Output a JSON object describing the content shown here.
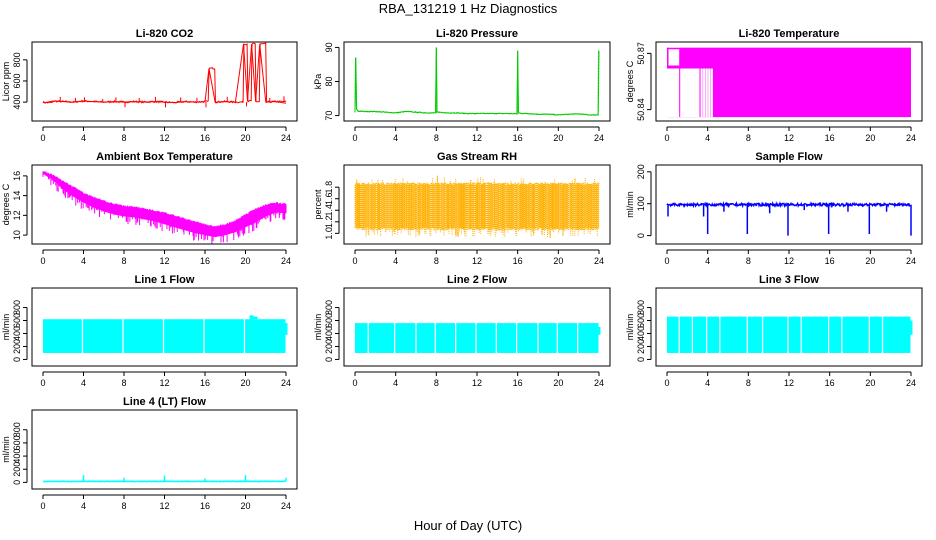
{
  "title": "RBA_131219  1 Hz Diagnostics",
  "xlabel": "Hour of Day (UTC)",
  "chart_data": [
    {
      "type": "line",
      "title": "Li-820 CO2",
      "ylabel": "Licor ppm",
      "color": "#ff0000",
      "xlim": [
        0,
        24
      ],
      "ylim": [
        240,
        950
      ],
      "yticks": [
        400,
        600,
        800
      ],
      "xticks": [
        0,
        4,
        8,
        12,
        16,
        20,
        24
      ],
      "series": [
        {
          "x": [
            0,
            0.2,
            1,
            2,
            3,
            4,
            5,
            6,
            7,
            8,
            9,
            10,
            11,
            12,
            13,
            14,
            15,
            16,
            16.4,
            17,
            18,
            19,
            19.8,
            20.2,
            20.6,
            21,
            21.4,
            22,
            23,
            24
          ],
          "y": [
            400,
            395,
            410,
            405,
            400,
            410,
            405,
            400,
            405,
            400,
            405,
            400,
            405,
            400,
            395,
            405,
            400,
            405,
            720,
            400,
            405,
            400,
            950,
            410,
            950,
            405,
            950,
            400,
            405,
            390
          ]
        }
      ],
      "spikes": [
        {
          "x": 1.7,
          "y": 450
        },
        {
          "x": 3.2,
          "y": 440
        },
        {
          "x": 4.1,
          "y": 445
        },
        {
          "x": 5.9,
          "y": 430
        },
        {
          "x": 7.2,
          "y": 445
        },
        {
          "x": 8.1,
          "y": 350
        },
        {
          "x": 9.5,
          "y": 440
        },
        {
          "x": 11.1,
          "y": 450
        },
        {
          "x": 12.1,
          "y": 350
        },
        {
          "x": 13.6,
          "y": 445
        },
        {
          "x": 15.2,
          "y": 440
        },
        {
          "x": 16.1,
          "y": 350
        },
        {
          "x": 18.2,
          "y": 450
        },
        {
          "x": 20.1,
          "y": 360
        },
        {
          "x": 22.4,
          "y": 440
        },
        {
          "x": 23.8,
          "y": 455
        }
      ]
    },
    {
      "type": "line",
      "title": "Li-820 Pressure",
      "ylabel": "kPa",
      "color": "#00cc00",
      "xlim": [
        0,
        24
      ],
      "ylim": [
        69,
        91
      ],
      "yticks": [
        70,
        80,
        90
      ],
      "xticks": [
        0,
        4,
        8,
        12,
        16,
        20,
        24
      ],
      "series": [
        {
          "x": [
            0,
            0.05,
            0.15,
            0.3,
            1,
            2,
            3,
            4,
            5,
            6,
            7,
            7.95,
            8.0,
            8.05,
            8.5,
            9,
            10,
            11,
            12,
            13,
            14,
            15,
            15.95,
            16.0,
            16.05,
            16.5,
            17,
            18,
            19,
            20,
            21,
            22,
            23,
            23.9,
            23.95,
            24
          ],
          "y": [
            71,
            87,
            72,
            71.3,
            71.2,
            71.2,
            71,
            70.8,
            71.2,
            71,
            70.8,
            70.8,
            90,
            71,
            70.9,
            70.8,
            70.8,
            70.6,
            70.6,
            70.6,
            70.6,
            70.6,
            70.5,
            89,
            70.8,
            70.6,
            70.6,
            70.4,
            70.4,
            70.2,
            70.4,
            70.5,
            70.2,
            70.2,
            89,
            89
          ]
        }
      ],
      "spikes": []
    },
    {
      "type": "area",
      "title": "Li-820 Temperature",
      "ylabel": "degrees C",
      "color": "#ff00ff",
      "xlim": [
        0,
        24
      ],
      "ylim": [
        50.835,
        50.875
      ],
      "yticks": [
        50.84,
        50.87
      ],
      "xticks": [
        0,
        4,
        8,
        12,
        16,
        20,
        24
      ],
      "band_low": 50.836,
      "band_high": 50.873,
      "step_top_before_x": 1.2,
      "step_top_value": 50.863,
      "gaps": [
        1.2,
        3.2,
        3.45,
        3.7,
        3.95,
        4.2,
        4.6
      ]
    },
    {
      "type": "line",
      "title": "Ambient Box Temperature",
      "ylabel": "degrees C",
      "color": "#ff00ff",
      "xlim": [
        0,
        24
      ],
      "ylim": [
        9.3,
        16.9
      ],
      "yticks": [
        10,
        12,
        14,
        16
      ],
      "xticks": [
        0,
        4,
        8,
        12,
        16,
        20,
        24
      ],
      "series": [
        {
          "name": "upper",
          "x": [
            0,
            1,
            2,
            3,
            4,
            5,
            6,
            7,
            8,
            9,
            10,
            11,
            12,
            13,
            14,
            15,
            16,
            17,
            18,
            19,
            20,
            21,
            22,
            23,
            24
          ],
          "y": [
            16.4,
            16.0,
            15.4,
            14.8,
            14.2,
            13.8,
            13.4,
            13.1,
            12.9,
            12.8,
            12.6,
            12.4,
            12.2,
            11.9,
            11.6,
            11.3,
            11.0,
            10.8,
            11.0,
            11.4,
            12.0,
            12.6,
            13.0,
            13.2,
            13.1
          ]
        },
        {
          "name": "lower",
          "x": [
            0,
            1,
            2,
            3,
            4,
            5,
            6,
            7,
            8,
            9,
            10,
            11,
            12,
            13,
            14,
            15,
            16,
            17,
            18,
            19,
            20,
            21,
            22,
            23,
            24
          ],
          "y": [
            16.2,
            15.6,
            14.6,
            13.9,
            13.3,
            12.8,
            12.4,
            12.1,
            11.9,
            11.8,
            11.6,
            11.4,
            11.1,
            10.8,
            10.5,
            10.2,
            10.0,
            9.8,
            10.0,
            10.3,
            10.8,
            11.3,
            11.9,
            12.3,
            12.2
          ]
        }
      ]
    },
    {
      "type": "area",
      "title": "Gas Stream RH",
      "ylabel": "percent",
      "color": "#ffb000",
      "xlim": [
        0,
        24
      ],
      "ylim": [
        0.85,
        2.15
      ],
      "yticks": [
        1.0,
        1.2,
        1.4,
        1.6,
        1.8
      ],
      "xticks": [
        0,
        4,
        8,
        12,
        16,
        20,
        24
      ],
      "band_low": 1.05,
      "band_high": 1.88,
      "outliers_high": 2.0,
      "outliers_low": 0.92
    },
    {
      "type": "line",
      "title": "Sample Flow",
      "ylabel": "ml/min",
      "color": "#0000ff",
      "xlim": [
        0,
        24
      ],
      "ylim": [
        -20,
        215
      ],
      "yticks": [
        0,
        100,
        200
      ],
      "xticks": [
        0,
        4,
        8,
        12,
        16,
        20,
        24
      ],
      "baseline": 97,
      "dips": [
        {
          "x": 0.1,
          "y": 60
        },
        {
          "x": 3.6,
          "y": 60
        },
        {
          "x": 4.0,
          "y": 5
        },
        {
          "x": 5.6,
          "y": 75
        },
        {
          "x": 7.9,
          "y": 5
        },
        {
          "x": 10.1,
          "y": 70
        },
        {
          "x": 11.9,
          "y": 0
        },
        {
          "x": 13.5,
          "y": 80
        },
        {
          "x": 15.9,
          "y": 5
        },
        {
          "x": 17.8,
          "y": 75
        },
        {
          "x": 19.9,
          "y": 5
        },
        {
          "x": 21.6,
          "y": 75
        },
        {
          "x": 24.0,
          "y": 0
        }
      ]
    },
    {
      "type": "area",
      "title": "Line 1 Flow",
      "ylabel": "ml/min",
      "color": "#00ffff",
      "xlim": [
        0,
        24
      ],
      "ylim": [
        -70,
        1070
      ],
      "yticks": [
        0,
        200,
        400,
        600,
        800
      ],
      "xticks": [
        0,
        4,
        8,
        12,
        16,
        20,
        24
      ],
      "band_low": 100,
      "band_high": 620,
      "gaps": [
        3.9,
        7.9,
        11.9,
        15.9,
        19.9
      ],
      "bumps": [
        {
          "x": 20.6,
          "y": 680
        },
        {
          "x": 21.0,
          "y": 660
        }
      ]
    },
    {
      "type": "area",
      "title": "Line 2 Flow",
      "ylabel": "ml/min",
      "color": "#00ffff",
      "xlim": [
        0,
        24
      ],
      "ylim": [
        -70,
        1070
      ],
      "yticks": [
        0,
        200,
        400,
        600,
        800
      ],
      "xticks": [
        0,
        4,
        8,
        12,
        16,
        20,
        24
      ],
      "band_low": 100,
      "band_high": 560,
      "gaps": [
        1.3,
        3.9,
        6.0,
        7.9,
        9.9,
        11.9,
        13.9,
        15.9,
        18.0,
        19.9,
        21.9
      ],
      "bumps": []
    },
    {
      "type": "area",
      "title": "Line 3 Flow",
      "ylabel": "ml/min",
      "color": "#00ffff",
      "xlim": [
        0,
        24
      ],
      "ylim": [
        -70,
        1070
      ],
      "yticks": [
        0,
        200,
        400,
        600,
        800
      ],
      "xticks": [
        0,
        4,
        8,
        12,
        16,
        20,
        24
      ],
      "band_low": 100,
      "band_high": 660,
      "gaps": [
        1.2,
        2.5,
        3.9,
        5.2,
        7.9,
        9.4,
        11.9,
        13.2,
        15.9,
        17.2,
        19.9,
        21.2
      ],
      "bumps": []
    },
    {
      "type": "line",
      "title": "Line 4 (LT) Flow",
      "ylabel": "ml/min",
      "color": "#00ffff",
      "xlim": [
        0,
        24
      ],
      "ylim": [
        -70,
        1070
      ],
      "yticks": [
        0,
        200,
        400,
        600,
        800
      ],
      "xticks": [
        0,
        4,
        8,
        12,
        16,
        20,
        24
      ],
      "baseline": 15,
      "spikes": [
        {
          "x": 4.0,
          "y": 110
        },
        {
          "x": 8.0,
          "y": 70
        },
        {
          "x": 12.0,
          "y": 105
        },
        {
          "x": 16.0,
          "y": 60
        },
        {
          "x": 20.0,
          "y": 110
        },
        {
          "x": 24.0,
          "y": 70
        }
      ]
    }
  ]
}
